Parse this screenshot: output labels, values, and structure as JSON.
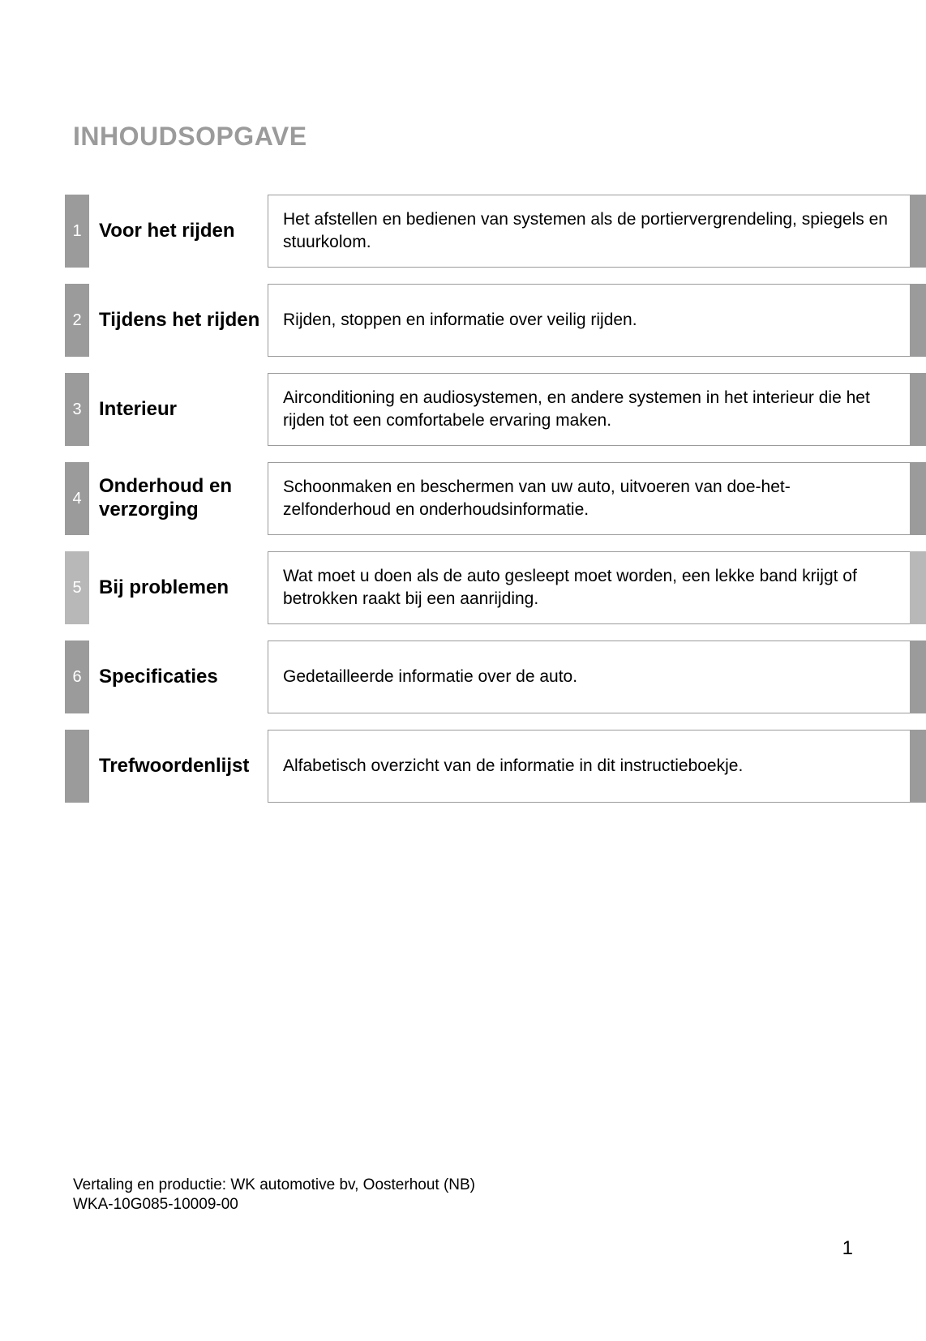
{
  "title": "INHOUDSOPGAVE",
  "colors": {
    "title_color": "#9b9b9b",
    "block_gray": "#9b9b9b",
    "block_light_gray": "#b8b8b8",
    "text_black": "#000000",
    "border_gray": "#9b9b9b",
    "background": "#ffffff",
    "num_text": "#ffffff"
  },
  "typography": {
    "title_fontsize": 32,
    "section_title_fontsize": 24,
    "desc_fontsize": 21,
    "footer_fontsize": 19,
    "page_num_fontsize": 24
  },
  "sections": [
    {
      "num": "1",
      "light": false,
      "title": "Voor het rijden",
      "desc": "Het afstellen en bedienen van systemen als de portiervergrendeling, spiegels en stuurkolom."
    },
    {
      "num": "2",
      "light": false,
      "title": "Tijdens het rijden",
      "desc": "Rijden, stoppen en informatie over veilig rijden."
    },
    {
      "num": "3",
      "light": false,
      "title": "Interieur",
      "desc": "Airconditioning en audiosystemen, en andere systemen in het interieur die het rijden tot een comfortabele ervaring maken."
    },
    {
      "num": "4",
      "light": false,
      "title": "Onderhoud en verzorging",
      "desc": "Schoonmaken en beschermen van uw auto, uitvoeren van doe-het-zelfonderhoud en onderhoudsinformatie."
    },
    {
      "num": "5",
      "light": true,
      "title": "Bij problemen",
      "desc": "Wat moet u doen als de auto gesleept moet worden, een lekke band krijgt of betrokken raakt bij een aanrijding."
    },
    {
      "num": "6",
      "light": false,
      "title": "Specificaties",
      "desc": "Gedetailleerde informatie over de auto."
    },
    {
      "num": "",
      "light": false,
      "title": "Trefwoordenlijst",
      "desc": "Alfabetisch overzicht van de informatie in dit instructieboekje."
    }
  ],
  "footer": {
    "line1": "Vertaling en productie: WK automotive bv, Oosterhout (NB)",
    "line2": "WKA-10G085-10009-00"
  },
  "page_number": "1"
}
